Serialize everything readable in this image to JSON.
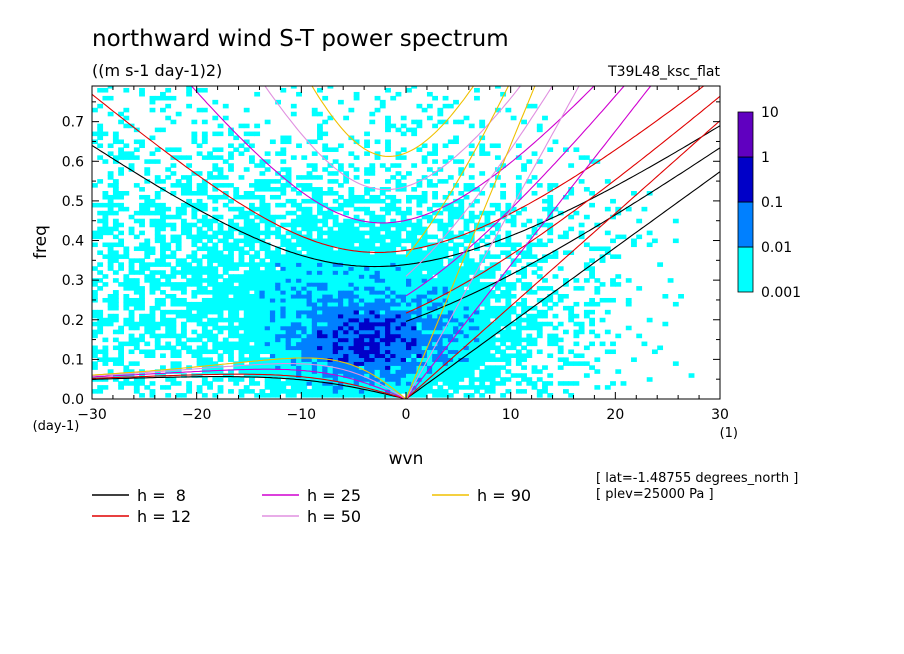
{
  "chart_data": {
    "type": "heatmap",
    "title": "northward wind S-T power spectrum",
    "subtitle": "((m s-1 day-1)2)",
    "run_label": "T39L48_ksc_flat",
    "xlabel": "wvn",
    "xunit": "(1)",
    "ylabel": "freq",
    "yunit": "(day-1)",
    "xlim": [
      -30,
      30
    ],
    "ylim": [
      0,
      0.79
    ],
    "x_ticks": [
      "-30",
      "-20",
      "-10",
      "0",
      "10",
      "20",
      "30"
    ],
    "y_ticks": [
      "0.0",
      "0.1",
      "0.2",
      "0.3",
      "0.4",
      "0.5",
      "0.6",
      "0.7"
    ],
    "colorbar": {
      "labels": [
        "10",
        "1",
        "0.1",
        "0.01",
        "0.001"
      ],
      "levels": [
        0.001,
        0.01,
        0.1,
        1,
        10
      ],
      "colors": [
        "#00ffff",
        "#0080ff",
        "#0000c8",
        "#6000c0"
      ]
    },
    "dispersion_curves": [
      {
        "name": "h =  8",
        "h": 8,
        "color": "#000000"
      },
      {
        "name": "h = 12",
        "h": 12,
        "color": "#e00000"
      },
      {
        "name": "h = 25",
        "h": 25,
        "color": "#d000d0"
      },
      {
        "name": "h = 50",
        "h": 50,
        "color": "#e090e0"
      },
      {
        "name": "h = 90",
        "h": 90,
        "color": "#f0c000"
      }
    ],
    "annotations": [
      "[ lat=-1.48755 degrees_north ]",
      "[ plev=25000 Pa ]"
    ]
  }
}
